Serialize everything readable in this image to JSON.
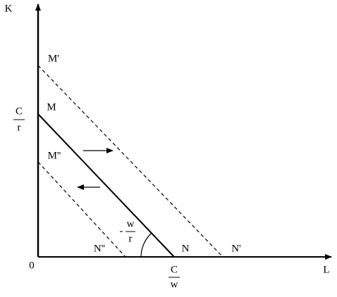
{
  "axes": {
    "y": "K",
    "x": "L",
    "origin": "0"
  },
  "points": {
    "m_prime": "M'",
    "m": "M",
    "m_double_prime": "M''",
    "n_double_prime": "N''",
    "n": "N",
    "n_prime": "N'"
  },
  "intercepts": {
    "y": {
      "numerator": "C",
      "denominator": "r"
    },
    "x": {
      "numerator": "C",
      "denominator": "w"
    }
  },
  "slope": {
    "sign": "-",
    "numerator": "w",
    "denominator": "r"
  }
}
